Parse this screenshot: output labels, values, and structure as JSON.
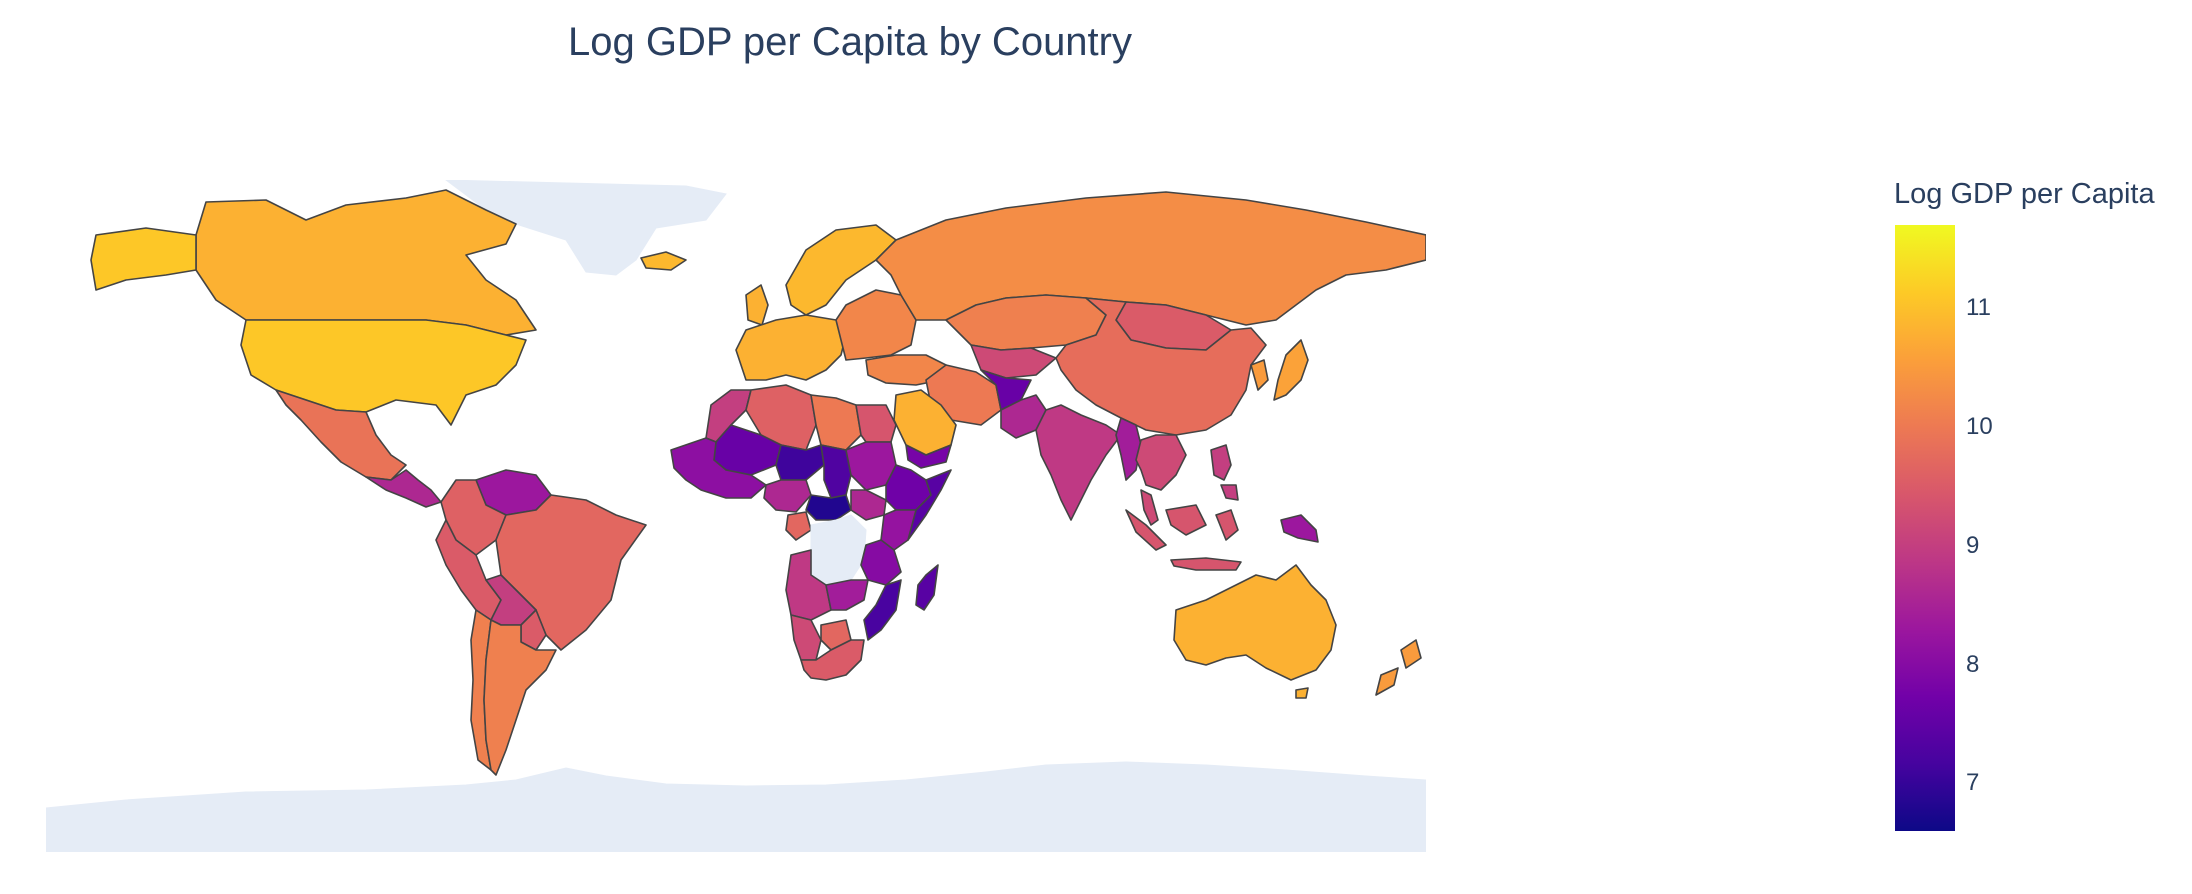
{
  "title": "Log GDP per Capita by Country",
  "colorbar": {
    "title": "Log GDP per Capita",
    "range": [
      6.6,
      11.7
    ],
    "ticks": [
      7,
      8,
      9,
      10,
      11
    ],
    "colorscale": [
      "#0d0887",
      "#46039f",
      "#7201a8",
      "#9c179e",
      "#bd3786",
      "#d8576b",
      "#ed7953",
      "#fb9f3a",
      "#fdca26",
      "#f0f921"
    ]
  },
  "colors": {
    "no_data": "#E5ECF6",
    "border": "#444444",
    "text": "#2a3f5f"
  },
  "regions": [
    {
      "name": "Canada",
      "value": 10.8
    },
    {
      "name": "United States",
      "value": 11.1
    },
    {
      "name": "Mexico",
      "value": 9.9
    },
    {
      "name": "Central America",
      "value": 8.6
    },
    {
      "name": "Venezuela",
      "value": 8.3
    },
    {
      "name": "Colombia",
      "value": 9.6
    },
    {
      "name": "Peru",
      "value": 9.5
    },
    {
      "name": "Brazil",
      "value": 9.7
    },
    {
      "name": "Bolivia",
      "value": 9.0
    },
    {
      "name": "Argentina",
      "value": 10.1
    },
    {
      "name": "Chile",
      "value": 10.1
    },
    {
      "name": "Paraguay",
      "value": 9.5
    },
    {
      "name": "Greenland",
      "value": null
    },
    {
      "name": "Iceland",
      "value": 10.9
    },
    {
      "name": "Northern Europe",
      "value": 10.9
    },
    {
      "name": "Western Europe",
      "value": 10.8
    },
    {
      "name": "Eastern Europe",
      "value": 10.2
    },
    {
      "name": "Russia",
      "value": 10.3
    },
    {
      "name": "Kazakhstan",
      "value": 10.1
    },
    {
      "name": "Mongolia",
      "value": 9.5
    },
    {
      "name": "China",
      "value": 9.8
    },
    {
      "name": "Japan",
      "value": 10.6
    },
    {
      "name": "Korea",
      "value": 10.5
    },
    {
      "name": "Central Asia",
      "value": 9.2
    },
    {
      "name": "Iran",
      "value": 10.0
    },
    {
      "name": "Afghanistan",
      "value": 7.6
    },
    {
      "name": "Pakistan",
      "value": 8.6
    },
    {
      "name": "India",
      "value": 8.9
    },
    {
      "name": "Southeast Asia",
      "value": 9.2
    },
    {
      "name": "Myanmar",
      "value": 8.4
    },
    {
      "name": "Indonesia",
      "value": 9.4
    },
    {
      "name": "Philippines",
      "value": 9.0
    },
    {
      "name": "Papua New Guinea",
      "value": 8.3
    },
    {
      "name": "Australia",
      "value": 10.8
    },
    {
      "name": "New Zealand",
      "value": 10.5
    },
    {
      "name": "Saudi Arabia",
      "value": 10.8
    },
    {
      "name": "Yemen",
      "value": 7.8
    },
    {
      "name": "Turkey",
      "value": 10.2
    },
    {
      "name": "Algeria",
      "value": 9.6
    },
    {
      "name": "Libya",
      "value": 10.0
    },
    {
      "name": "Egypt",
      "value": 9.4
    },
    {
      "name": "Morocco",
      "value": 9.0
    },
    {
      "name": "Mali",
      "value": 7.6
    },
    {
      "name": "Niger",
      "value": 7.1
    },
    {
      "name": "Chad",
      "value": 7.3
    },
    {
      "name": "Sudan",
      "value": 8.3
    },
    {
      "name": "Ethiopia",
      "value": 7.7
    },
    {
      "name": "Somalia",
      "value": 7.4
    },
    {
      "name": "West Africa",
      "value": 8.1
    },
    {
      "name": "Nigeria",
      "value": 8.6
    },
    {
      "name": "Central African Republic",
      "value": 6.8
    },
    {
      "name": "South Sudan",
      "value": 8.6
    },
    {
      "name": "Gabon",
      "value": 9.7
    },
    {
      "name": "Congo",
      "value": null
    },
    {
      "name": "Kenya",
      "value": 8.2
    },
    {
      "name": "Tanzania",
      "value": 8.0
    },
    {
      "name": "Angola",
      "value": 8.9
    },
    {
      "name": "Zambia",
      "value": 8.4
    },
    {
      "name": "Mozambique",
      "value": 7.2
    },
    {
      "name": "Madagascar",
      "value": 7.4
    },
    {
      "name": "Namibia",
      "value": 9.2
    },
    {
      "name": "Botswana",
      "value": 9.7
    },
    {
      "name": "South Africa",
      "value": 9.5
    },
    {
      "name": "Antarctica",
      "value": null
    }
  ]
}
